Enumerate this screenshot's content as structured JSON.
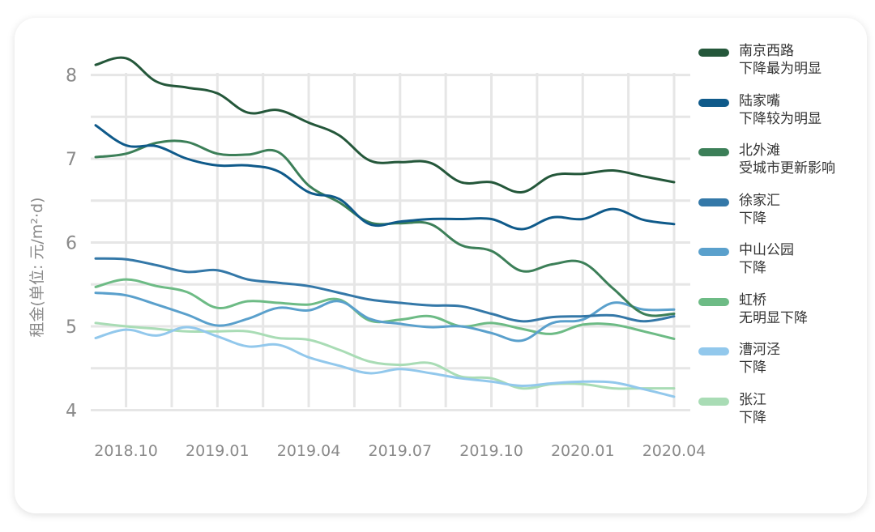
{
  "chart_data": {
    "type": "line",
    "title": "",
    "xlabel": "",
    "ylabel": "租金(单位: 元/m²·d)",
    "ylim": [
      3.85,
      8.45
    ],
    "yticks": [
      4,
      5,
      6,
      7,
      8
    ],
    "xtick_labels": [
      "2018.10",
      "2019.01",
      "2019.04",
      "2019.07",
      "2019.10",
      "2020.01",
      "2020.04"
    ],
    "grid": true,
    "legend_position": "right",
    "x": [
      "2018.09",
      "2018.10",
      "2018.11",
      "2018.12",
      "2019.01",
      "2019.02",
      "2019.03",
      "2019.04",
      "2019.05",
      "2019.06",
      "2019.07",
      "2019.08",
      "2019.09",
      "2019.10",
      "2019.11",
      "2019.12",
      "2020.01",
      "2020.02",
      "2020.03",
      "2020.04"
    ],
    "series": [
      {
        "name": "南京西路",
        "note": "下降最为明显",
        "color": "#24573a",
        "values": [
          8.12,
          8.2,
          7.92,
          7.85,
          7.78,
          7.55,
          7.58,
          7.43,
          7.28,
          6.98,
          6.96,
          6.95,
          6.72,
          6.72,
          6.6,
          6.8,
          6.82,
          6.86,
          6.79,
          6.72
        ]
      },
      {
        "name": "陆家嘴",
        "note": "下降较为明显",
        "color": "#0f5a8a",
        "values": [
          7.4,
          7.16,
          7.15,
          7.0,
          6.92,
          6.92,
          6.85,
          6.6,
          6.52,
          6.22,
          6.25,
          6.28,
          6.28,
          6.28,
          6.16,
          6.3,
          6.28,
          6.4,
          6.27,
          6.22
        ]
      },
      {
        "name": "北外滩",
        "note": "受城市更新影响",
        "color": "#3c7f58",
        "values": [
          7.02,
          7.06,
          7.19,
          7.2,
          7.06,
          7.05,
          7.08,
          6.68,
          6.48,
          6.24,
          6.23,
          6.22,
          5.97,
          5.9,
          5.66,
          5.74,
          5.76,
          5.45,
          5.15,
          5.15
        ]
      },
      {
        "name": "徐家汇",
        "note": "下降",
        "color": "#3478a8",
        "values": [
          5.81,
          5.8,
          5.73,
          5.65,
          5.67,
          5.56,
          5.52,
          5.48,
          5.4,
          5.32,
          5.28,
          5.25,
          5.24,
          5.15,
          5.06,
          5.11,
          5.12,
          5.13,
          5.06,
          5.12
        ]
      },
      {
        "name": "中山公园",
        "note": "下降",
        "color": "#5aa0cc",
        "values": [
          5.4,
          5.37,
          5.26,
          5.14,
          5.01,
          5.09,
          5.22,
          5.19,
          5.3,
          5.09,
          5.03,
          4.99,
          5.0,
          4.92,
          4.83,
          5.04,
          5.08,
          5.28,
          5.2,
          5.2
        ]
      },
      {
        "name": "虹桥",
        "note": "无明显下降",
        "color": "#6dbb85",
        "values": [
          5.47,
          5.56,
          5.48,
          5.41,
          5.22,
          5.3,
          5.28,
          5.26,
          5.32,
          5.07,
          5.08,
          5.12,
          5.0,
          5.04,
          4.97,
          4.91,
          5.02,
          5.02,
          4.94,
          4.85
        ]
      },
      {
        "name": "漕河泾",
        "note": "下降",
        "color": "#92c8ec",
        "values": [
          4.86,
          4.96,
          4.89,
          4.99,
          4.88,
          4.76,
          4.78,
          4.63,
          4.53,
          4.44,
          4.49,
          4.44,
          4.38,
          4.34,
          4.29,
          4.32,
          4.34,
          4.33,
          4.25,
          4.16
        ]
      },
      {
        "name": "张江",
        "note": "下降",
        "color": "#a9dcb5",
        "values": [
          5.04,
          5.0,
          4.97,
          4.94,
          4.94,
          4.94,
          4.86,
          4.84,
          4.72,
          4.58,
          4.54,
          4.56,
          4.4,
          4.38,
          4.26,
          4.31,
          4.31,
          4.26,
          4.26,
          4.26
        ]
      }
    ]
  }
}
